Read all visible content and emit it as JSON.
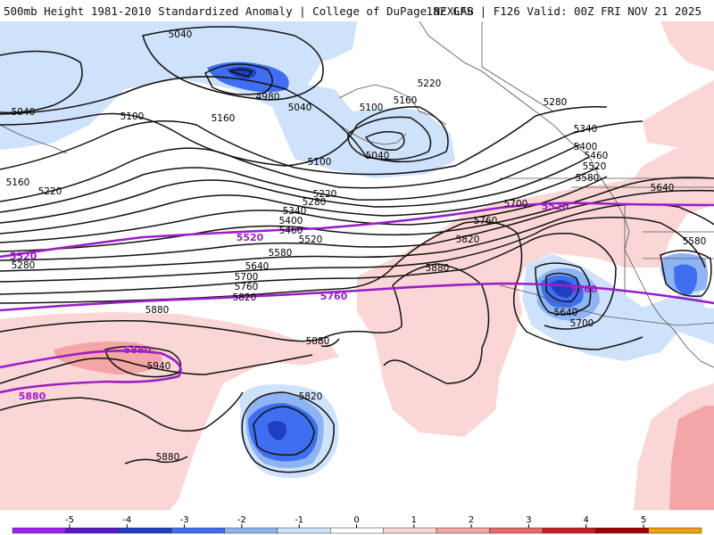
{
  "header": {
    "title_left": "500mb Height 1981-2010 Standardized Anomaly | College of DuPage NEXLAB",
    "title_right": "18Z GFS | F126 Valid: 00Z FRI NOV 21 2025"
  },
  "contour_labels": {
    "h5040_a": "5040",
    "h5040_b": "5040",
    "h5040_c": "5040",
    "h5040_d": "5040",
    "h4980": "4980",
    "h5100_a": "5100",
    "h5100_b": "5100",
    "h5100_c": "5100",
    "h5160_a": "5160",
    "h5160_b": "5160",
    "h5160_c": "5160",
    "h5220_a": "5220",
    "h5220_b": "5220",
    "h5220_c": "5220",
    "h5280_a": "5280",
    "h5280_b": "5280",
    "h5280_c": "5280",
    "h5340_a": "5340",
    "h5340_b": "5340",
    "h5400_a": "5400",
    "h5400_b": "5400",
    "h5460_a": "5460",
    "h5460_b": "5460",
    "h5520_a": "5520",
    "h5520_b": "5520",
    "h5580_a": "5580",
    "h5580_b": "5580",
    "h5580_c": "5580",
    "h5640_a": "5640",
    "h5640_b": "5640",
    "h5640_c": "5640",
    "h5700_a": "5700",
    "h5700_b": "5700",
    "h5700_c": "5700",
    "h5760_a": "5760",
    "h5760_b": "5760",
    "h5820_a": "5820",
    "h5820_b": "5820",
    "h5820_c": "5820",
    "h5880_a": "5880",
    "h5880_b": "5880",
    "h5880_c": "5880",
    "h5880_d": "5880",
    "h5940": "5940"
  },
  "purple_labels": {
    "p5520_a": "5520",
    "p5520_b": "5520",
    "p5520_c": "5520",
    "p5760_a": "5760",
    "p5760_b": "5760",
    "p5880_a": "5880",
    "p5880_b": "5880"
  },
  "colorbar": {
    "ticks": [
      "-5",
      "-4",
      "-3",
      "-2",
      "-1",
      "0",
      "1",
      "2",
      "3",
      "4",
      "5"
    ],
    "colors": {
      "n5": "#a020f0",
      "n4": "#5a17c8",
      "n3": "#1e3fbf",
      "n2": "#3f6ff0",
      "n1": "#8fb4f3",
      "n05": "#cfe2fb",
      "zero": "#ffffff",
      "p05": "#fbd6d6",
      "p1": "#f4a5a5",
      "p2": "#e96a6a",
      "p3": "#c82020",
      "p4": "#a00000",
      "p5": "#f2a000"
    }
  }
}
